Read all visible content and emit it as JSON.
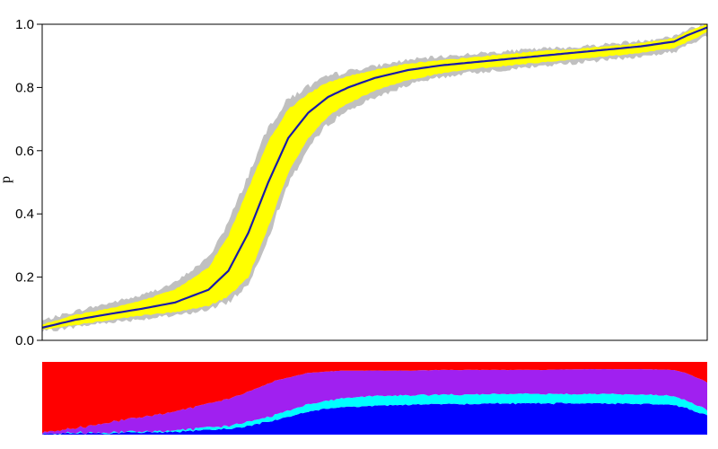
{
  "chart_data": [
    {
      "type": "line",
      "title": "",
      "xlabel": "",
      "ylabel": "p",
      "ylim": [
        0,
        1
      ],
      "yticks": [
        "0.0",
        "0.2",
        "0.4",
        "0.6",
        "0.8",
        "1.0"
      ],
      "x_axis_labels_shown": false,
      "grid": false,
      "legend": "none",
      "x": [
        0.0,
        0.05,
        0.1,
        0.15,
        0.2,
        0.25,
        0.28,
        0.31,
        0.34,
        0.37,
        0.4,
        0.43,
        0.46,
        0.5,
        0.55,
        0.6,
        0.65,
        0.7,
        0.75,
        0.8,
        0.85,
        0.9,
        0.95,
        0.97,
        1.0
      ],
      "series": [
        {
          "role": "mean",
          "color": "#1a1aa8",
          "values": [
            0.04,
            0.065,
            0.083,
            0.1,
            0.12,
            0.16,
            0.22,
            0.34,
            0.5,
            0.64,
            0.72,
            0.77,
            0.8,
            0.83,
            0.855,
            0.87,
            0.88,
            0.89,
            0.9,
            0.91,
            0.92,
            0.93,
            0.945,
            0.965,
            0.99
          ]
        },
        {
          "role": "inner band (upper)",
          "color": "#ffff00",
          "values": [
            0.05,
            0.08,
            0.1,
            0.125,
            0.16,
            0.23,
            0.33,
            0.48,
            0.63,
            0.73,
            0.78,
            0.815,
            0.835,
            0.855,
            0.875,
            0.885,
            0.895,
            0.905,
            0.915,
            0.92,
            0.93,
            0.94,
            0.955,
            0.975,
            1.0
          ]
        },
        {
          "role": "inner band (lower)",
          "color": "#ffff00",
          "values": [
            0.035,
            0.05,
            0.065,
            0.08,
            0.09,
            0.11,
            0.14,
            0.2,
            0.36,
            0.53,
            0.64,
            0.71,
            0.75,
            0.79,
            0.825,
            0.845,
            0.86,
            0.87,
            0.88,
            0.89,
            0.9,
            0.91,
            0.925,
            0.945,
            0.975
          ]
        },
        {
          "role": "outer band (upper)",
          "color": "#c0c0c0",
          "values": [
            0.06,
            0.09,
            0.115,
            0.14,
            0.18,
            0.26,
            0.37,
            0.52,
            0.67,
            0.76,
            0.8,
            0.83,
            0.85,
            0.865,
            0.885,
            0.895,
            0.905,
            0.912,
            0.92,
            0.925,
            0.935,
            0.945,
            0.96,
            0.98,
            1.0
          ]
        },
        {
          "role": "outer band (lower)",
          "color": "#c0c0c0",
          "values": [
            0.03,
            0.045,
            0.06,
            0.07,
            0.08,
            0.1,
            0.125,
            0.18,
            0.33,
            0.5,
            0.61,
            0.69,
            0.73,
            0.77,
            0.81,
            0.835,
            0.85,
            0.86,
            0.87,
            0.88,
            0.89,
            0.9,
            0.915,
            0.935,
            0.965
          ]
        }
      ]
    },
    {
      "type": "area",
      "stacked": true,
      "normalized": true,
      "axes_shown": false,
      "ylim": [
        0,
        1
      ],
      "x": [
        0.0,
        0.05,
        0.1,
        0.15,
        0.2,
        0.25,
        0.3,
        0.35,
        0.4,
        0.45,
        0.5,
        0.55,
        0.6,
        0.65,
        0.7,
        0.75,
        0.8,
        0.85,
        0.9,
        0.95,
        0.97,
        1.0
      ],
      "series": [
        {
          "role": "bottom layer",
          "color": "#0000ff",
          "values": [
            0.01,
            0.02,
            0.02,
            0.03,
            0.04,
            0.06,
            0.1,
            0.2,
            0.32,
            0.38,
            0.4,
            0.41,
            0.42,
            0.42,
            0.43,
            0.43,
            0.43,
            0.43,
            0.42,
            0.41,
            0.36,
            0.26
          ]
        },
        {
          "role": "second layer",
          "color": "#00ffff",
          "values": [
            0.0,
            0.0,
            0.01,
            0.01,
            0.02,
            0.03,
            0.05,
            0.07,
            0.1,
            0.12,
            0.13,
            0.13,
            0.13,
            0.13,
            0.13,
            0.13,
            0.13,
            0.13,
            0.13,
            0.12,
            0.1,
            0.08
          ]
        },
        {
          "role": "third layer",
          "color": "#a020f0",
          "values": [
            0.02,
            0.06,
            0.14,
            0.2,
            0.26,
            0.33,
            0.4,
            0.47,
            0.43,
            0.38,
            0.35,
            0.34,
            0.34,
            0.34,
            0.33,
            0.33,
            0.34,
            0.34,
            0.35,
            0.36,
            0.38,
            0.38
          ]
        },
        {
          "role": "top layer",
          "color": "#ff0000",
          "values": [
            0.97,
            0.92,
            0.83,
            0.76,
            0.68,
            0.58,
            0.45,
            0.26,
            0.15,
            0.12,
            0.12,
            0.12,
            0.11,
            0.11,
            0.11,
            0.11,
            0.1,
            0.1,
            0.1,
            0.11,
            0.16,
            0.28
          ]
        }
      ]
    }
  ]
}
